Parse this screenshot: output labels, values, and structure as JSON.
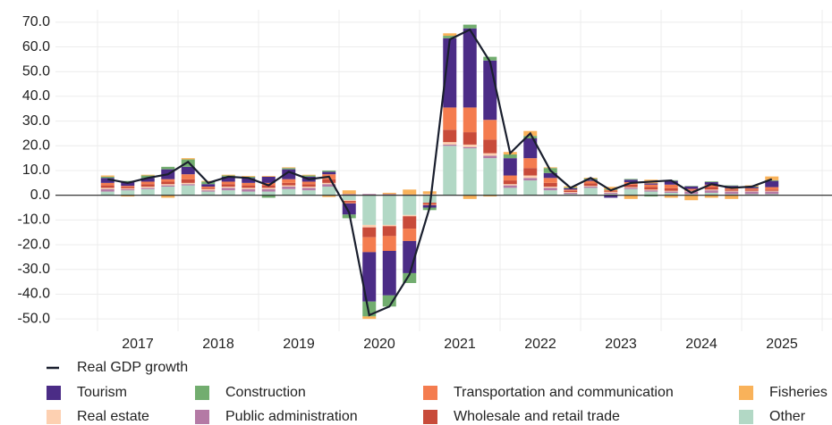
{
  "chart_data": {
    "type": "stacked-bar-line",
    "years": [
      "2017",
      "2018",
      "2019",
      "2020",
      "2021",
      "2022",
      "2023",
      "2024",
      "2025"
    ],
    "categories": [
      null,
      null,
      null,
      null,
      null,
      null,
      null,
      null,
      null,
      null,
      null,
      null,
      null,
      null,
      null,
      null,
      null,
      null,
      null,
      null,
      null,
      null,
      null,
      null,
      null,
      null,
      null,
      null,
      null,
      null,
      null,
      null,
      null,
      null
    ],
    "ylim": [
      -55,
      75
    ],
    "yticks": [
      {
        "value": -50,
        "label": "-50.0"
      },
      {
        "value": -40,
        "label": "-40.0"
      },
      {
        "value": -30,
        "label": "-30.0"
      },
      {
        "value": -20,
        "label": "-20.0"
      },
      {
        "value": -10,
        "label": "-10.0"
      },
      {
        "value": 0,
        "label": "0.0"
      },
      {
        "value": 10,
        "label": "10.0"
      },
      {
        "value": 20,
        "label": "20.0"
      },
      {
        "value": 30,
        "label": "30.0"
      },
      {
        "value": 40,
        "label": "40.0"
      },
      {
        "value": 50,
        "label": "50.0"
      },
      {
        "value": 60,
        "label": "60.0"
      },
      {
        "value": 70,
        "label": "70.0"
      }
    ],
    "grid": true,
    "line": {
      "name": "Real GDP growth",
      "color": "#1a1f2e",
      "values": [
        6.5,
        5,
        7,
        8.5,
        13.5,
        5,
        7.5,
        7,
        4,
        9.5,
        6.5,
        7.5,
        -7,
        -48.5,
        -45,
        -32,
        -5,
        63,
        67,
        54,
        17,
        25,
        10,
        3,
        7,
        2,
        5,
        5.5,
        6,
        1,
        4.5,
        3,
        3.5,
        6.5
      ]
    },
    "series": [
      {
        "name": "Tourism",
        "color": "#4b2c86",
        "values": [
          2,
          1.5,
          1.5,
          4,
          3,
          1,
          2,
          2,
          2.5,
          4,
          2,
          1,
          -4.5,
          -20,
          -18,
          -13,
          -1,
          28,
          32,
          24,
          7,
          8,
          2,
          0.5,
          0.5,
          -1,
          1,
          0.5,
          1.5,
          1,
          1,
          1,
          0.5,
          2.5
        ]
      },
      {
        "name": "Construction",
        "color": "#72ad6f",
        "values": [
          0.5,
          0.5,
          1,
          1,
          3,
          1,
          0.5,
          0.5,
          -1,
          0.5,
          0.5,
          0.5,
          -1.5,
          -6,
          -4.5,
          -4,
          -1,
          1,
          1.5,
          1.5,
          1.5,
          1,
          2,
          0.3,
          0.5,
          0.3,
          0.3,
          -0.5,
          0.3,
          0.2,
          0.3,
          0.2,
          0.2,
          0.3
        ]
      },
      {
        "name": "Transportation and communication",
        "color": "#f47c4f",
        "values": [
          1,
          0.5,
          1,
          1,
          2,
          0.5,
          1,
          1,
          1,
          1.5,
          1,
          2,
          -0.5,
          -6,
          -6,
          -5,
          -0.5,
          9,
          10,
          8,
          2,
          4,
          2,
          0.5,
          1,
          0.5,
          1,
          1,
          1.5,
          0.5,
          1,
          0.5,
          0.5,
          1
        ]
      },
      {
        "name": "Fisheries",
        "color": "#f9b25a",
        "values": [
          0.5,
          -0.5,
          0.3,
          -1,
          0.5,
          0.3,
          0.3,
          0.3,
          0.3,
          0.3,
          0.3,
          -0.7,
          1.5,
          -1,
          0.5,
          2,
          1,
          1,
          -1.5,
          -0.5,
          1,
          2,
          0.3,
          0.5,
          0.3,
          1,
          -1.5,
          1.5,
          -1,
          -2,
          -1,
          -1.5,
          0.5,
          1.5
        ]
      },
      {
        "name": "Real estate",
        "color": "#fdd0b1",
        "values": [
          0.5,
          0.3,
          0.5,
          0.5,
          0.5,
          0.5,
          0.5,
          0.5,
          0.5,
          0.5,
          0.5,
          0.5,
          -0.3,
          -1,
          -0.5,
          -0.5,
          0.3,
          1,
          1,
          1,
          0.5,
          1,
          0.5,
          0.3,
          0.3,
          0.3,
          0.3,
          0.3,
          0.3,
          0.3,
          0.3,
          0.3,
          0.3,
          0.3
        ]
      },
      {
        "name": "Public administration",
        "color": "#b47aa5",
        "values": [
          1,
          0.5,
          0.5,
          0.5,
          0.5,
          0.5,
          1,
          1,
          1,
          1,
          1,
          1,
          0.5,
          0.5,
          0.5,
          0.3,
          0.3,
          0.5,
          0.5,
          1,
          1,
          1,
          1,
          0.5,
          0.5,
          0.5,
          0.5,
          0.5,
          0.5,
          1,
          1,
          1,
          1,
          1
        ]
      },
      {
        "name": "Wholesale and retail trade",
        "color": "#c84b3a",
        "values": [
          1,
          0.5,
          1,
          1,
          1.5,
          0.5,
          1,
          1,
          1,
          1,
          1,
          1.5,
          -0.5,
          -4,
          -4,
          -5,
          -0.5,
          5,
          5,
          5.5,
          1.5,
          3,
          1.5,
          0.5,
          1,
          0.3,
          1,
          1,
          1,
          0.3,
          1,
          0.5,
          0.5,
          0.5
        ]
      },
      {
        "name": "Other",
        "color": "#b2d8c5",
        "values": [
          1.5,
          2,
          2.5,
          3.5,
          4,
          1.5,
          2,
          1.5,
          1.5,
          2.5,
          2,
          3.5,
          -2,
          -12,
          -12,
          -8,
          -3,
          20,
          19,
          15,
          3,
          6,
          2,
          0.5,
          3,
          0.5,
          2.5,
          1.5,
          1,
          0.5,
          1,
          0.5,
          0.5,
          0.5
        ]
      }
    ]
  }
}
